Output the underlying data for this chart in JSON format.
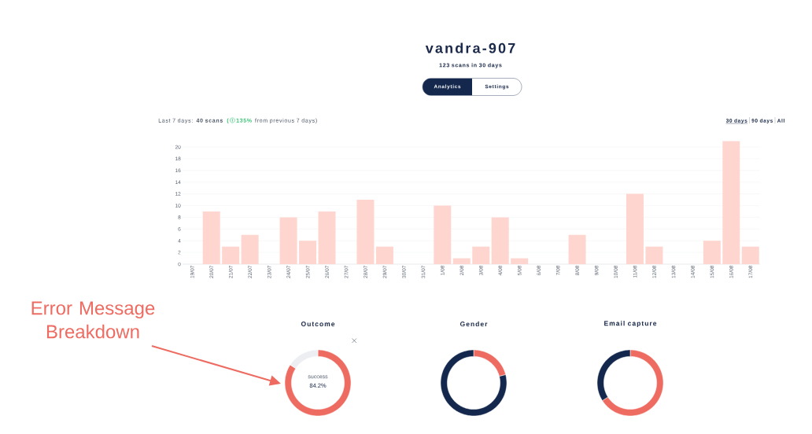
{
  "chart_data": [
    {
      "type": "bar",
      "title": "vandra-907",
      "subtitle": "123 scans in 30 days",
      "annotations": [
        "Analytics",
        "Settings",
        "Last 7 days: **40 scans**",
        "(",
        "135%",
        "from previous 7 days)",
        "30 days",
        "90 days",
        "All"
      ],
      "categories": [
        "19/07",
        "20/07",
        "21/07",
        "22/07",
        "23/07",
        "24/07",
        "25/07",
        "26/07",
        "27/07",
        "28/07",
        "29/07",
        "30/07",
        "31/07",
        "1/08",
        "2/08",
        "3/08",
        "4/08",
        "5/08",
        "6/08",
        "7/08",
        "8/08",
        "9/08",
        "10/08",
        "11/08",
        "12/08",
        "13/08",
        "14/08",
        "15/08",
        "16/08",
        "17/08"
      ],
      "values": [
        0,
        9,
        3,
        5,
        0,
        8,
        4,
        9,
        0,
        11,
        3,
        0,
        0,
        10,
        1,
        3,
        8,
        1,
        0,
        0,
        5,
        0,
        0,
        12,
        3,
        0,
        0,
        4,
        21,
        3
      ],
      "color": "#ffd6cf",
      "ylim": [
        0,
        21
      ],
      "yticks": [
        0,
        2,
        4,
        6,
        8,
        10,
        12,
        14,
        16,
        18,
        20
      ],
      "grid": "y"
    },
    {
      "type": "donut",
      "title": "Outcome",
      "categories": [
        "success",
        null
      ],
      "values": [
        84.2,
        15.8
      ],
      "colors": [
        "#ee6b61",
        "#eceef2"
      ],
      "value_labels": [
        "84.2%",
        null
      ],
      "annotations": [
        "Error Message Breakdown"
      ]
    },
    {
      "type": "donut",
      "title": "Gender",
      "categories": [
        null,
        null
      ],
      "values": [
        21,
        79
      ],
      "colors": [
        "#ee6b61",
        "#13284c"
      ]
    },
    {
      "type": "donut",
      "title": "Email capture",
      "categories": [
        null,
        null
      ],
      "values": [
        66,
        34
      ],
      "colors": [
        "#ee6b61",
        "#13284c"
      ]
    }
  ]
}
